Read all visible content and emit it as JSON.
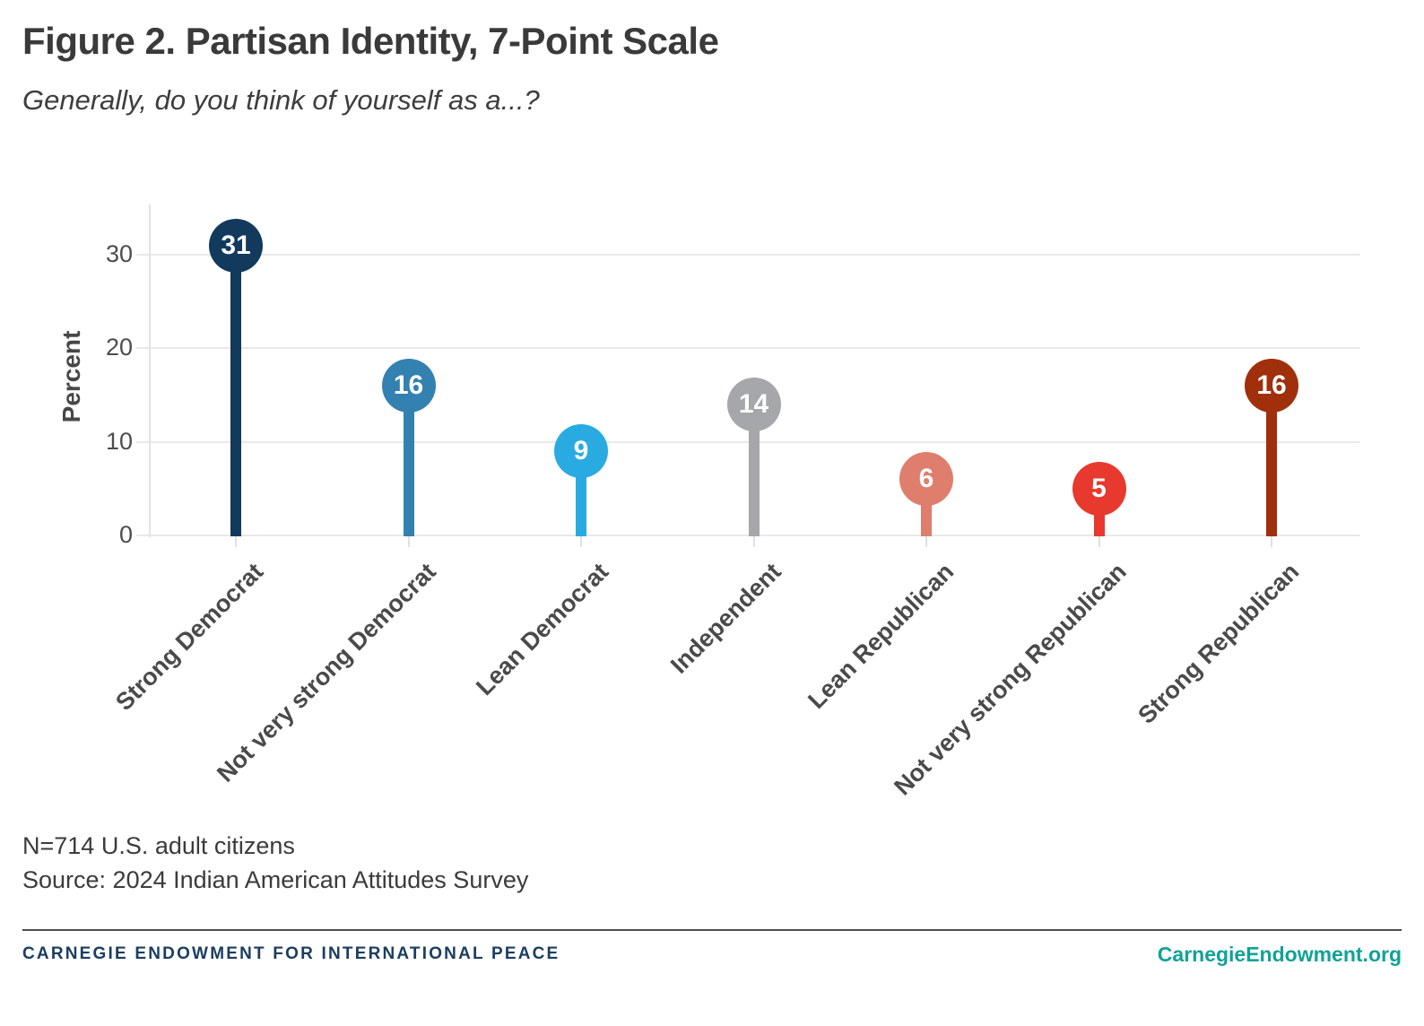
{
  "header": {
    "title": "Figure 2. Partisan Identity, 7-Point Scale",
    "subtitle": "Generally, do you think of yourself as a...?"
  },
  "chart_data": {
    "type": "lollipop-bar",
    "categories": [
      "Strong Democrat",
      "Not very strong Democrat",
      "Lean Democrat",
      "Independent",
      "Lean Republican",
      "Not very strong Republican",
      "Strong Republican"
    ],
    "values": [
      31,
      16,
      9,
      14,
      6,
      5,
      16
    ],
    "colors": [
      "#123a5c",
      "#3381b1",
      "#29abe2",
      "#a5a7aa",
      "#df7e6d",
      "#e8392e",
      "#a02f0b"
    ],
    "value_label_color": "#ffffff",
    "title": "Figure 2. Partisan Identity, 7-Point Scale",
    "subtitle": "Generally, do you think of yourself as a...?",
    "xlabel": "",
    "ylabel": "Percent",
    "yticks": [
      0,
      10,
      20,
      30
    ],
    "ylim": [
      0,
      35
    ],
    "grid": "horizontal",
    "legend": "none",
    "x_label_rotation_deg": 45
  },
  "notes": {
    "sample": "N=714 U.S. adult citizens",
    "source": "Source: 2024 Indian American Attitudes Survey"
  },
  "footer": {
    "org": "CARNEGIE ENDOWMENT FOR INTERNATIONAL PEACE",
    "org_color": "#1b3d62",
    "site": "CarnegieEndowment.org",
    "site_color": "#12a296"
  }
}
